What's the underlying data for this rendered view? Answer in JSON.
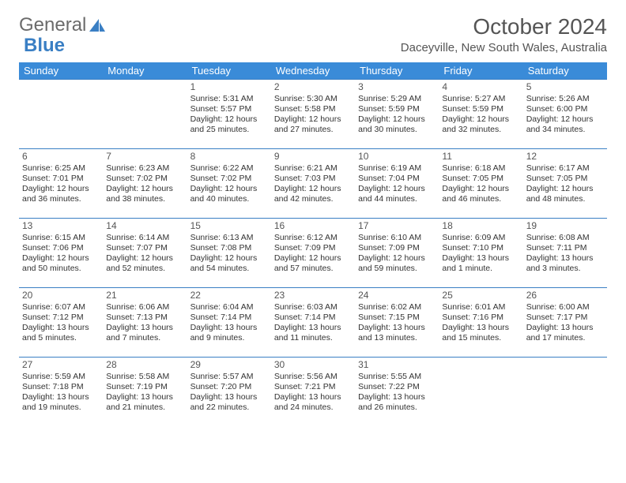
{
  "logo": {
    "text_general": "General",
    "text_blue": "Blue"
  },
  "title": "October 2024",
  "location": "Daceyville, New South Wales, Australia",
  "colors": {
    "header_bg": "#3a8bd8",
    "header_text": "#ffffff",
    "border": "#3a7fc4",
    "body_text": "#333333",
    "title_text": "#555555",
    "logo_gray": "#6b6b6b",
    "logo_blue": "#3a7fc4",
    "background": "#ffffff"
  },
  "weekdays": [
    "Sunday",
    "Monday",
    "Tuesday",
    "Wednesday",
    "Thursday",
    "Friday",
    "Saturday"
  ],
  "weeks": [
    [
      null,
      null,
      {
        "n": "1",
        "sr": "5:31 AM",
        "ss": "5:57 PM",
        "dl": "12 hours and 25 minutes."
      },
      {
        "n": "2",
        "sr": "5:30 AM",
        "ss": "5:58 PM",
        "dl": "12 hours and 27 minutes."
      },
      {
        "n": "3",
        "sr": "5:29 AM",
        "ss": "5:59 PM",
        "dl": "12 hours and 30 minutes."
      },
      {
        "n": "4",
        "sr": "5:27 AM",
        "ss": "5:59 PM",
        "dl": "12 hours and 32 minutes."
      },
      {
        "n": "5",
        "sr": "5:26 AM",
        "ss": "6:00 PM",
        "dl": "12 hours and 34 minutes."
      }
    ],
    [
      {
        "n": "6",
        "sr": "6:25 AM",
        "ss": "7:01 PM",
        "dl": "12 hours and 36 minutes."
      },
      {
        "n": "7",
        "sr": "6:23 AM",
        "ss": "7:02 PM",
        "dl": "12 hours and 38 minutes."
      },
      {
        "n": "8",
        "sr": "6:22 AM",
        "ss": "7:02 PM",
        "dl": "12 hours and 40 minutes."
      },
      {
        "n": "9",
        "sr": "6:21 AM",
        "ss": "7:03 PM",
        "dl": "12 hours and 42 minutes."
      },
      {
        "n": "10",
        "sr": "6:19 AM",
        "ss": "7:04 PM",
        "dl": "12 hours and 44 minutes."
      },
      {
        "n": "11",
        "sr": "6:18 AM",
        "ss": "7:05 PM",
        "dl": "12 hours and 46 minutes."
      },
      {
        "n": "12",
        "sr": "6:17 AM",
        "ss": "7:05 PM",
        "dl": "12 hours and 48 minutes."
      }
    ],
    [
      {
        "n": "13",
        "sr": "6:15 AM",
        "ss": "7:06 PM",
        "dl": "12 hours and 50 minutes."
      },
      {
        "n": "14",
        "sr": "6:14 AM",
        "ss": "7:07 PM",
        "dl": "12 hours and 52 minutes."
      },
      {
        "n": "15",
        "sr": "6:13 AM",
        "ss": "7:08 PM",
        "dl": "12 hours and 54 minutes."
      },
      {
        "n": "16",
        "sr": "6:12 AM",
        "ss": "7:09 PM",
        "dl": "12 hours and 57 minutes."
      },
      {
        "n": "17",
        "sr": "6:10 AM",
        "ss": "7:09 PM",
        "dl": "12 hours and 59 minutes."
      },
      {
        "n": "18",
        "sr": "6:09 AM",
        "ss": "7:10 PM",
        "dl": "13 hours and 1 minute."
      },
      {
        "n": "19",
        "sr": "6:08 AM",
        "ss": "7:11 PM",
        "dl": "13 hours and 3 minutes."
      }
    ],
    [
      {
        "n": "20",
        "sr": "6:07 AM",
        "ss": "7:12 PM",
        "dl": "13 hours and 5 minutes."
      },
      {
        "n": "21",
        "sr": "6:06 AM",
        "ss": "7:13 PM",
        "dl": "13 hours and 7 minutes."
      },
      {
        "n": "22",
        "sr": "6:04 AM",
        "ss": "7:14 PM",
        "dl": "13 hours and 9 minutes."
      },
      {
        "n": "23",
        "sr": "6:03 AM",
        "ss": "7:14 PM",
        "dl": "13 hours and 11 minutes."
      },
      {
        "n": "24",
        "sr": "6:02 AM",
        "ss": "7:15 PM",
        "dl": "13 hours and 13 minutes."
      },
      {
        "n": "25",
        "sr": "6:01 AM",
        "ss": "7:16 PM",
        "dl": "13 hours and 15 minutes."
      },
      {
        "n": "26",
        "sr": "6:00 AM",
        "ss": "7:17 PM",
        "dl": "13 hours and 17 minutes."
      }
    ],
    [
      {
        "n": "27",
        "sr": "5:59 AM",
        "ss": "7:18 PM",
        "dl": "13 hours and 19 minutes."
      },
      {
        "n": "28",
        "sr": "5:58 AM",
        "ss": "7:19 PM",
        "dl": "13 hours and 21 minutes."
      },
      {
        "n": "29",
        "sr": "5:57 AM",
        "ss": "7:20 PM",
        "dl": "13 hours and 22 minutes."
      },
      {
        "n": "30",
        "sr": "5:56 AM",
        "ss": "7:21 PM",
        "dl": "13 hours and 24 minutes."
      },
      {
        "n": "31",
        "sr": "5:55 AM",
        "ss": "7:22 PM",
        "dl": "13 hours and 26 minutes."
      },
      null,
      null
    ]
  ],
  "labels": {
    "sunrise": "Sunrise: ",
    "sunset": "Sunset: ",
    "daylight": "Daylight: "
  }
}
